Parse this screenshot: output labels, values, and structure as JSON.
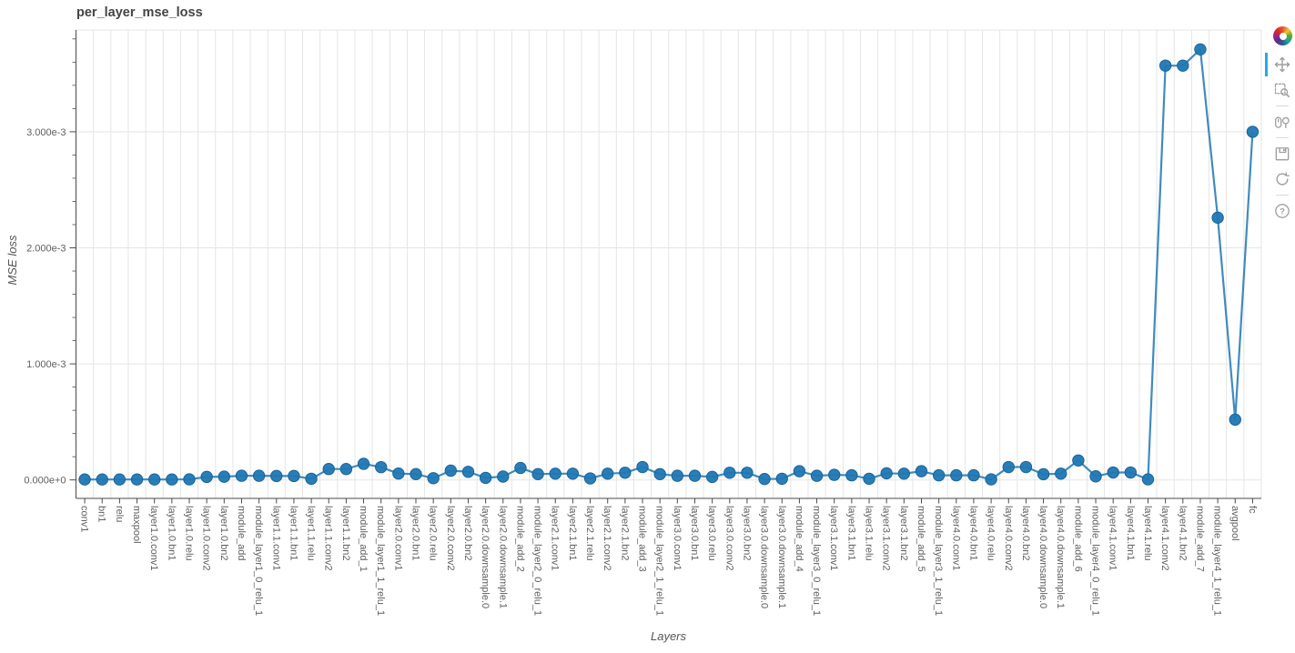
{
  "title": "per_layer_mse_loss",
  "toolbar": {
    "active_tool": "pan",
    "tools": [
      "pan",
      "box-zoom",
      "wheel-zoom",
      "save",
      "reset",
      "help"
    ],
    "active_indicator_color": "#26aae1"
  },
  "chart_data": {
    "type": "line",
    "title": "per_layer_mse_loss",
    "xlabel": "Layers",
    "ylabel": "MSE loss",
    "line_color": "#1f77b4",
    "marker_color": "#1f77b4",
    "grid": true,
    "legend": null,
    "ylim": [
      -0.00016,
      0.00388
    ],
    "y_ticks": [
      {
        "label": "0.000e+0",
        "value": 0
      },
      {
        "label": "1.000e-3",
        "value": 0.001
      },
      {
        "label": "2.000e-3",
        "value": 0.002
      },
      {
        "label": "3.000e-3",
        "value": 0.003
      }
    ],
    "y_minor_step": 0.0002,
    "categories": [
      "conv1",
      "bn1",
      "relu",
      "maxpool",
      "layer1.0.conv1",
      "layer1.0.bn1",
      "layer1.0.relu",
      "layer1.0.conv2",
      "layer1.0.bn2",
      "module_add",
      "module_layer1_0_relu_1",
      "layer1.1.conv1",
      "layer1.1.bn1",
      "layer1.1.relu",
      "layer1.1.conv2",
      "layer1.1.bn2",
      "module_add_1",
      "module_layer1_1_relu_1",
      "layer2.0.conv1",
      "layer2.0.bn1",
      "layer2.0.relu",
      "layer2.0.conv2",
      "layer2.0.bn2",
      "layer2.0.downsample.0",
      "layer2.0.downsample.1",
      "module_add_2",
      "module_layer2_0_relu_1",
      "layer2.1.conv1",
      "layer2.1.bn1",
      "layer2.1.relu",
      "layer2.1.conv2",
      "layer2.1.bn2",
      "module_add_3",
      "module_layer2_1_relu_1",
      "layer3.0.conv1",
      "layer3.0.bn1",
      "layer3.0.relu",
      "layer3.0.conv2",
      "layer3.0.bn2",
      "layer3.0.downsample.0",
      "layer3.0.downsample.1",
      "module_add_4",
      "module_layer3_0_relu_1",
      "layer3.1.conv1",
      "layer3.1.bn1",
      "layer3.1.relu",
      "layer3.1.conv2",
      "layer3.1.bn2",
      "module_add_5",
      "module_layer3_1_relu_1",
      "layer4.0.conv1",
      "layer4.0.bn1",
      "layer4.0.relu",
      "layer4.0.conv2",
      "layer4.0.bn2",
      "layer4.0.downsample.0",
      "layer4.0.downsample.1",
      "module_add_6",
      "module_layer4_0_relu_1",
      "layer4.1.conv1",
      "layer4.1.bn1",
      "layer4.1.relu",
      "layer4.1.conv2",
      "layer4.1.bn2",
      "module_add_7",
      "module_layer4_1_relu_1",
      "avgpool",
      "fc"
    ],
    "values": [
      4e-06,
      4e-06,
      4e-06,
      4e-06,
      4e-06,
      4e-06,
      5e-06,
      2.6e-05,
      2.8e-05,
      3.6e-05,
      3.6e-05,
      3.4e-05,
      3.4e-05,
      1e-05,
      9.4e-05,
      9.4e-05,
      0.000139,
      0.00011,
      5.5e-05,
      5e-05,
      1.5e-05,
      8e-05,
      7e-05,
      1.8e-05,
      2.9e-05,
      0.000103,
      5e-05,
      5.4e-05,
      5.4e-05,
      1.3e-05,
      5.4e-05,
      6.2e-05,
      0.000111,
      5e-05,
      3.6e-05,
      3.6e-05,
      2.6e-05,
      6.2e-05,
      6.2e-05,
      8e-06,
      1e-05,
      7.5e-05,
      3.6e-05,
      4.4e-05,
      4e-05,
      1e-05,
      5.7e-05,
      5.4e-05,
      7.5e-05,
      4e-05,
      4e-05,
      4e-05,
      5e-06,
      0.000111,
      0.000111,
      4.9e-05,
      5.4e-05,
      0.000168,
      3.1e-05,
      6.4e-05,
      6.4e-05,
      5e-06,
      0.00357,
      0.00357,
      0.00371,
      0.00226,
      0.00052,
      0.003
    ]
  }
}
